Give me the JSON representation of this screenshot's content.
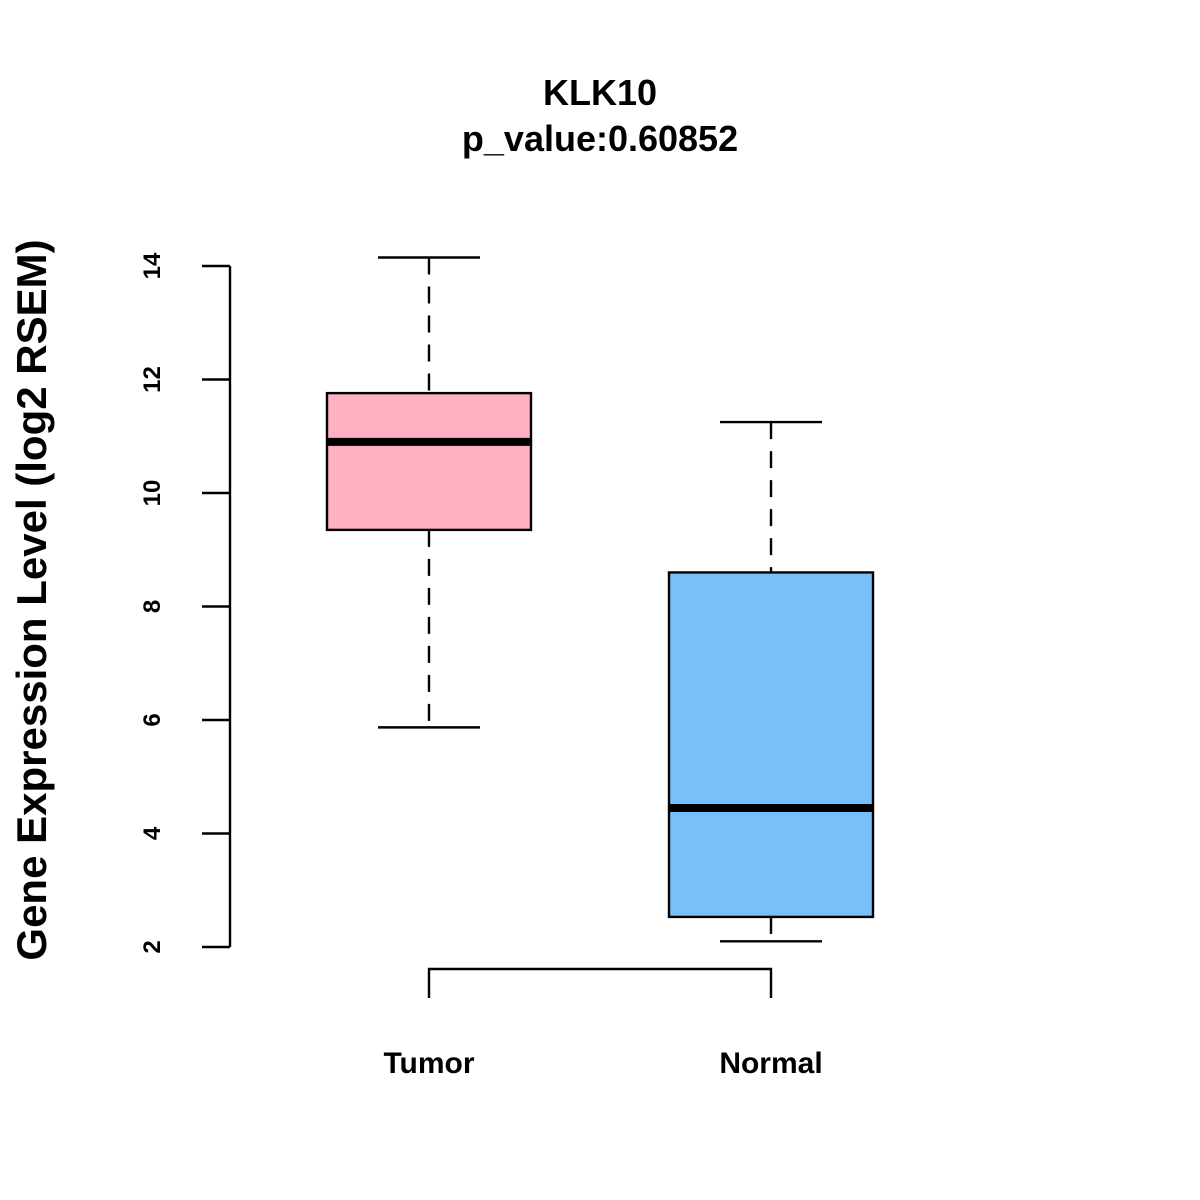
{
  "chart_data": {
    "type": "boxplot",
    "title": "KLK10",
    "subtitle": "p_value:0.60852",
    "xlabel": "",
    "ylabel": "Gene Expression Level (log2 RSEM)",
    "ylim": [
      2,
      14
    ],
    "yticks": [
      "2",
      "4",
      "6",
      "8",
      "10",
      "12",
      "14"
    ],
    "categories": [
      "Tumor",
      "Normal"
    ],
    "boxes": [
      {
        "name": "Tumor",
        "whisker_low": 5.87,
        "q1": 9.35,
        "median": 10.9,
        "q3": 11.76,
        "whisker_high": 14.15,
        "color": "#FFB1C4"
      },
      {
        "name": "Normal",
        "whisker_low": 2.1,
        "q1": 2.53,
        "median": 4.45,
        "q3": 8.6,
        "whisker_high": 11.25,
        "color": "#77C0F9"
      }
    ],
    "comparison_bracket": {
      "from": "Tumor",
      "to": "Normal"
    },
    "grid": false,
    "legend": "none"
  }
}
